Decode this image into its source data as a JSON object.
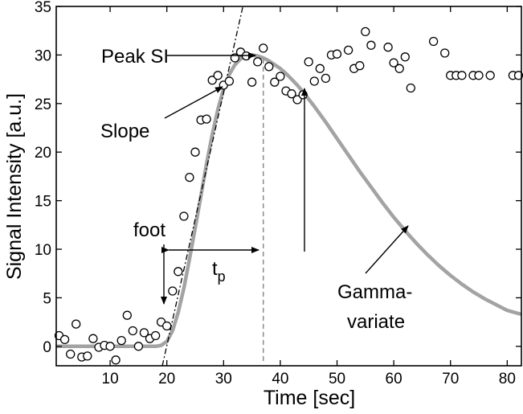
{
  "chart_data": {
    "type": "scatter",
    "title": "",
    "xlabel": "Time [sec]",
    "ylabel": "Signal Intensity [a.u.]",
    "xlim": [
      0.5,
      82.5
    ],
    "ylim": [
      -2,
      35
    ],
    "xticks": [
      10,
      20,
      30,
      40,
      50,
      60,
      70,
      80
    ],
    "yticks": [
      0,
      5,
      10,
      15,
      20,
      25,
      30,
      35
    ],
    "grid": false,
    "legend": "none",
    "colors": {
      "points": "#000000",
      "fit": "#a3a3a3",
      "slope_line": "#000000",
      "peak_line": "#8c8c8c"
    },
    "series": [
      {
        "kind": "points",
        "x": [
          1,
          2,
          3,
          4,
          5,
          6,
          7,
          8,
          9,
          10,
          11,
          12,
          13,
          14,
          15,
          16,
          17,
          18,
          19,
          20,
          21,
          22,
          23,
          24,
          25,
          26,
          27,
          28,
          29,
          30,
          31,
          32,
          33,
          34,
          35,
          36,
          37,
          38,
          39,
          40,
          41,
          42,
          43,
          44,
          45,
          46,
          47,
          48,
          49,
          50,
          52,
          53,
          54,
          55,
          56,
          59,
          60,
          61,
          62,
          63,
          67,
          69,
          70,
          71,
          72,
          74,
          75,
          77,
          81,
          82
        ],
        "y": [
          1.1,
          0.7,
          -0.8,
          2.3,
          -1.1,
          -1.0,
          0.8,
          -0.1,
          0.1,
          0.0,
          -1.4,
          0.6,
          3.2,
          1.6,
          0.0,
          1.4,
          0.8,
          1.1,
          2.5,
          2.1,
          5.7,
          7.7,
          13.4,
          17.4,
          20.0,
          23.3,
          23.4,
          27.4,
          27.9,
          26.9,
          27.3,
          29.7,
          30.3,
          29.9,
          27.2,
          29.3,
          30.7,
          28.8,
          27.2,
          27.8,
          26.3,
          26.0,
          25.4,
          25.9,
          29.3,
          27.3,
          28.6,
          27.6,
          30.0,
          30.1,
          30.5,
          28.6,
          28.9,
          32.4,
          31.0,
          30.8,
          29.2,
          28.6,
          29.8,
          26.6,
          31.4,
          30.2,
          27.9,
          27.9,
          27.9,
          27.9,
          27.9,
          27.9,
          27.9,
          27.9
        ]
      },
      {
        "kind": "gamma-variate-fit",
        "x": [
          0.5,
          5,
          10,
          15,
          18,
          19,
          20,
          21,
          22,
          23,
          24,
          25,
          26,
          27,
          28,
          29,
          30,
          31,
          32,
          33,
          34,
          35,
          36,
          37,
          38,
          39,
          40,
          41,
          42,
          43,
          44,
          46,
          48,
          50,
          52,
          54,
          56,
          58,
          60,
          62,
          64,
          66,
          68,
          70,
          72,
          74,
          76,
          78,
          80,
          82.5
        ],
        "y": [
          0,
          0,
          0,
          0,
          0,
          0.1,
          0.5,
          1.6,
          3.5,
          6.0,
          9.0,
          12.2,
          15.5,
          18.8,
          21.8,
          24.4,
          26.5,
          28.0,
          29.0,
          29.6,
          29.9,
          30.0,
          29.9,
          29.7,
          29.4,
          29.0,
          28.6,
          28.1,
          27.5,
          26.9,
          26.2,
          24.7,
          23.1,
          21.4,
          19.7,
          18.0,
          16.4,
          14.8,
          13.3,
          11.9,
          10.6,
          9.4,
          8.3,
          7.3,
          6.4,
          5.6,
          4.9,
          4.3,
          3.7,
          3.3
        ]
      },
      {
        "kind": "slope-line",
        "x": [
          19.2,
          33.4
        ],
        "y": [
          -2,
          35
        ]
      },
      {
        "kind": "peak-time-line",
        "x": [
          37,
          37
        ],
        "y": [
          -1.5,
          29.6
        ]
      }
    ],
    "annotations": [
      {
        "text": "Peak SI"
      },
      {
        "text": "Slope"
      },
      {
        "text": "foot"
      },
      {
        "text": "t",
        "subscript": "p"
      },
      {
        "text": "Gamma-"
      },
      {
        "text": "variate"
      }
    ]
  }
}
